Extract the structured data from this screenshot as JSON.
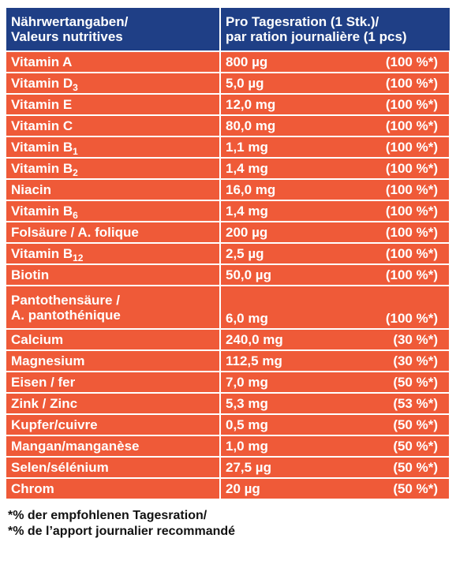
{
  "header": {
    "col1_line1": "Nährwertangaben/",
    "col1_line2": "Valeurs nutritives",
    "col2_line1": "Pro Tagesration (1 Stk.)/",
    "col2_line2": "par ration journalière (1 pcs)"
  },
  "rows": [
    {
      "name": "Vitamin A",
      "sub": "",
      "amount": "800 µg",
      "percent": "(100 %*)"
    },
    {
      "name": "Vitamin D",
      "sub": "3",
      "amount": "5,0 µg",
      "percent": "(100 %*)"
    },
    {
      "name": "Vitamin E",
      "sub": "",
      "amount": "12,0 mg",
      "percent": "(100 %*)"
    },
    {
      "name": "Vitamin C",
      "sub": "",
      "amount": "80,0 mg",
      "percent": "(100 %*)"
    },
    {
      "name": "Vitamin B",
      "sub": "1",
      "amount": "1,1 mg",
      "percent": "(100 %*)"
    },
    {
      "name": "Vitamin B",
      "sub": "2",
      "amount": "1,4 mg",
      "percent": "(100 %*)"
    },
    {
      "name": "Niacin",
      "sub": "",
      "amount": "16,0 mg",
      "percent": "(100 %*)"
    },
    {
      "name": "Vitamin B",
      "sub": "6",
      "amount": "1,4 mg",
      "percent": "(100 %*)"
    },
    {
      "name": "Folsäure / A. folique",
      "sub": "",
      "amount": "200 µg",
      "percent": "(100 %*)"
    },
    {
      "name": "Vitamin B",
      "sub": "12",
      "amount": "2,5 µg",
      "percent": "(100 %*)"
    },
    {
      "name": "Biotin",
      "sub": "",
      "amount": "50,0 µg",
      "percent": "(100 %*)"
    }
  ],
  "panto": {
    "line1": "Pantothensäure /",
    "line2": "A. pantothénique",
    "amount": "6,0 mg",
    "percent": "(100 %*)"
  },
  "minerals": [
    {
      "name": "Calcium",
      "amount": "240,0 mg",
      "percent": "(30 %*)"
    },
    {
      "name": "Magnesium",
      "amount": "112,5 mg",
      "percent": "(30 %*)"
    },
    {
      "name": "Eisen / fer",
      "amount": "7,0 mg",
      "percent": "(50 %*)"
    },
    {
      "name": "Zink / Zinc",
      "amount": "5,3 mg",
      "percent": "(53 %*)"
    },
    {
      "name": "Kupfer/cuivre",
      "amount": "0,5 mg",
      "percent": "(50 %*)"
    },
    {
      "name": "Mangan/manganèse",
      "amount": "1,0 mg",
      "percent": "(50 %*)"
    },
    {
      "name": "Selen/sélénium",
      "amount": "27,5 µg",
      "percent": "(50 %*)"
    },
    {
      "name": "Chrom",
      "amount": "20 µg",
      "percent": "(50 %*)"
    }
  ],
  "footnote": {
    "line1": "*% der empfohlenen Tagesration/",
    "line2": "*% de l’apport journalier recommandé"
  },
  "colors": {
    "header_bg": "#1f3f86",
    "row_bg": "#ef5a38",
    "text_light": "#ffffff"
  }
}
